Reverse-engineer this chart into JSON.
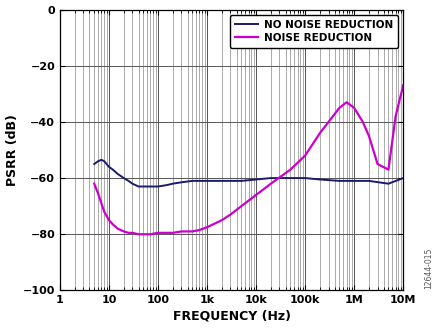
{
  "title": "",
  "xlabel": "FREQUENCY (Hz)",
  "ylabel": "PSRR (dB)",
  "xlim": [
    1,
    10000000.0
  ],
  "ylim": [
    -100,
    0
  ],
  "yticks": [
    0,
    -20,
    -40,
    -60,
    -80,
    -100
  ],
  "xtick_labels": [
    "1",
    "10",
    "100",
    "1k",
    "10k",
    "100k",
    "1M",
    "10M"
  ],
  "xtick_positions": [
    1,
    10,
    100,
    1000,
    10000,
    100000,
    1000000,
    10000000
  ],
  "legend_labels": [
    "NO NOISE REDUCTION",
    "NOISE REDUCTION"
  ],
  "line1_color": "#1a1a6e",
  "line2_color": "#cc00cc",
  "watermark": "12644-015",
  "no_noise_x": [
    5,
    6,
    7,
    8,
    10,
    12,
    15,
    20,
    25,
    30,
    40,
    50,
    70,
    100,
    150,
    200,
    300,
    500,
    700,
    1000,
    2000,
    5000,
    10000,
    20000,
    50000,
    100000,
    200000,
    500000,
    1000000,
    2000000,
    5000000,
    10000000
  ],
  "no_noise_y": [
    -55,
    -54,
    -53.5,
    -54,
    -56,
    -57,
    -58.5,
    -60,
    -61,
    -62,
    -63,
    -63,
    -63,
    -63,
    -62.5,
    -62,
    -61.5,
    -61,
    -61,
    -61,
    -61,
    -61,
    -60.5,
    -60,
    -60,
    -60,
    -60.5,
    -61,
    -61,
    -61,
    -62,
    -60
  ],
  "noise_red_x": [
    5,
    6,
    7,
    8,
    10,
    12,
    15,
    20,
    25,
    30,
    40,
    50,
    70,
    100,
    150,
    200,
    300,
    500,
    700,
    1000,
    2000,
    3000,
    5000,
    10000,
    20000,
    50000,
    100000,
    200000,
    500000,
    700000,
    1000000,
    1500000,
    2000000,
    3000000,
    5000000,
    7000000,
    10000000
  ],
  "noise_red_y": [
    -62,
    -65.5,
    -69,
    -72,
    -75,
    -76.5,
    -78,
    -79,
    -79.5,
    -79.5,
    -80,
    -80,
    -80,
    -79.5,
    -79.5,
    -79.5,
    -79,
    -79,
    -78.5,
    -77.5,
    -75,
    -73,
    -70,
    -66,
    -62,
    -57,
    -52,
    -44,
    -35,
    -33,
    -35,
    -40,
    -45,
    -55,
    -57,
    -38,
    -27
  ]
}
